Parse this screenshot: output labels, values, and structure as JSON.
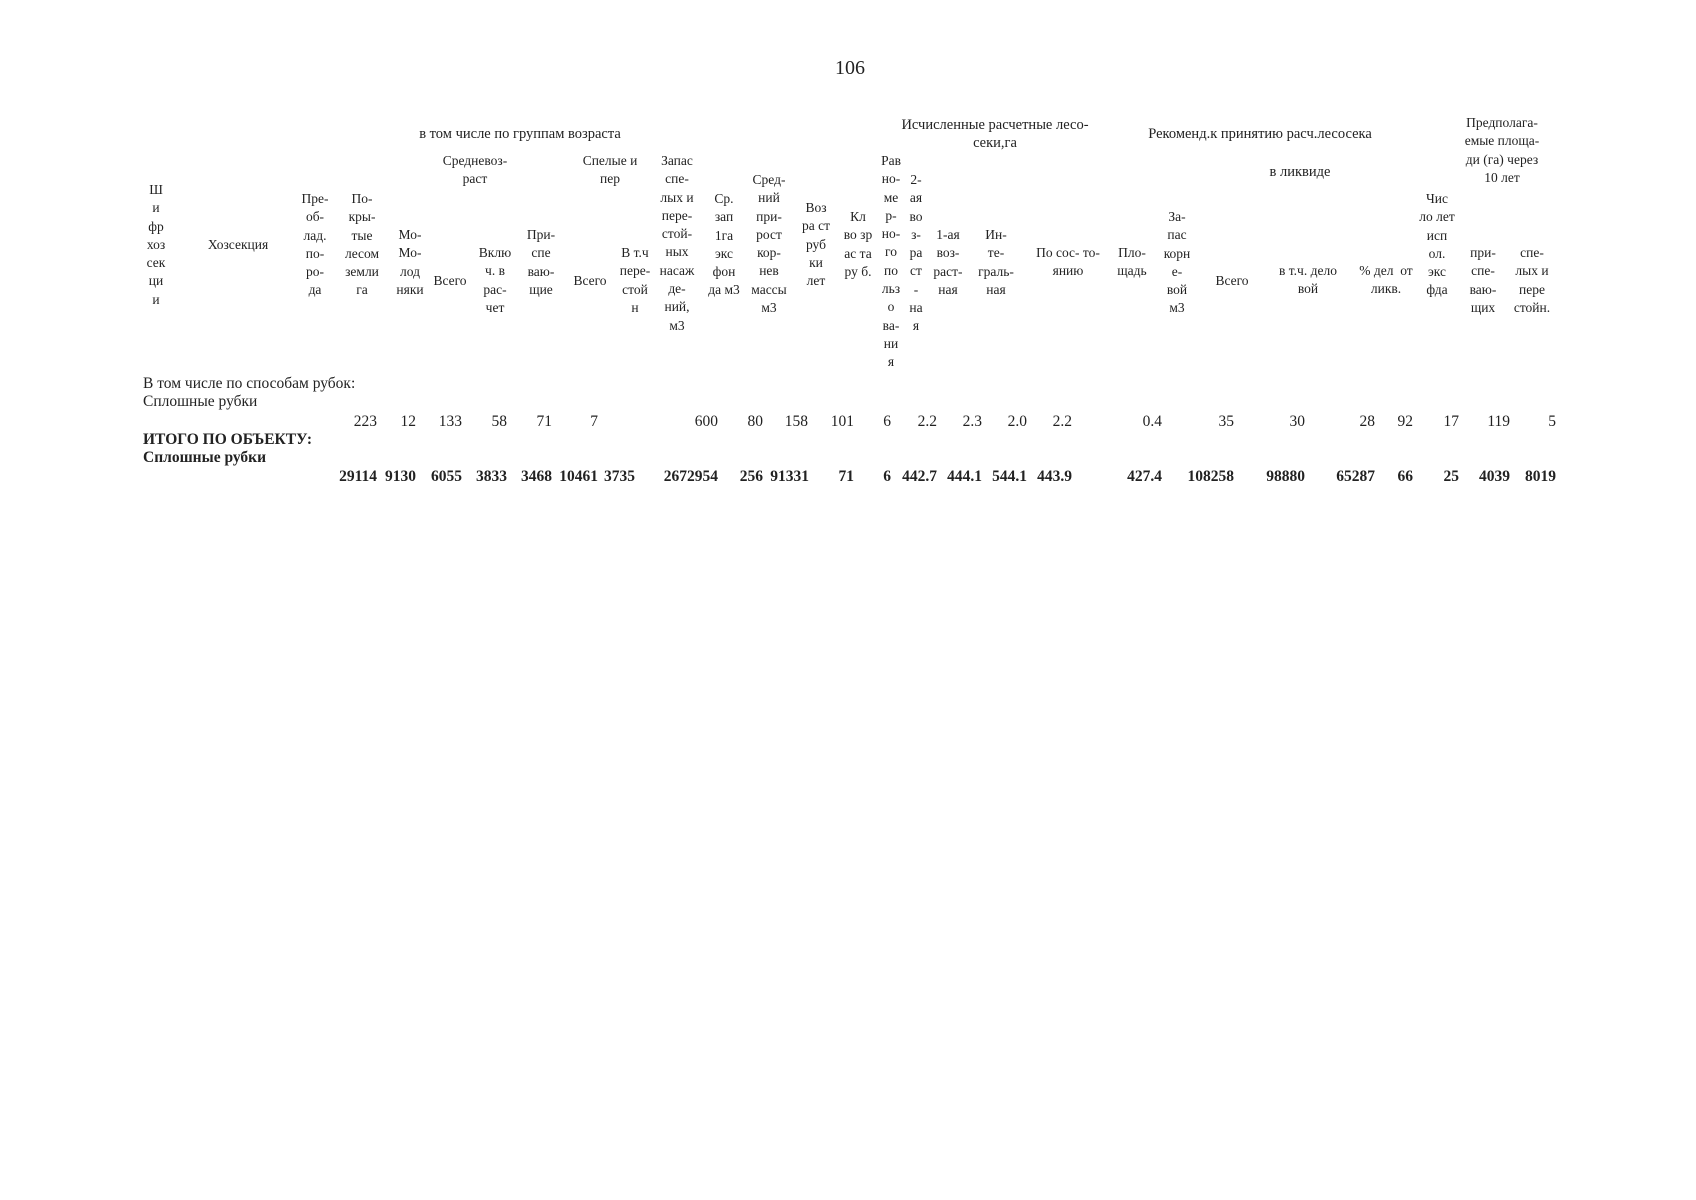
{
  "page_number": "106",
  "group_headers": {
    "age_groups": "в том числе по группам возраста",
    "calc_cutting": "Исчисленные расчетные лесо-\nсеки,га",
    "recommended": "Рекоменд.к принятию расч.лесосека",
    "liquid": "в ликвиде",
    "future_area": "Предполага-\nемые площа-\nди (га) через\n10 лет"
  },
  "sub_headers": {
    "middle_age": "Средневоз-\nраст",
    "mature": "Спелые и\nпер"
  },
  "columns": {
    "code": "Ш\nи\nфр\nхоз\nсек\nци\nи",
    "section": "Хозсекция",
    "species": "Пре-\nоб-\nлад.\nпо-\nро-\nда",
    "covered": "По-\nкры-\nтые\nлесом\nземли\nга",
    "young": "Мо-\nМо-\nлод\nняки",
    "mid_total": "Всего",
    "mid_incl": "Вклю\nч. в\nрас-\nчет",
    "premature": "При-\nспе\nваю-\nщие",
    "mat_total": "Всего",
    "mat_over": "В т.ч\nпере-\nстой\nн",
    "stock": "Запас\nспе-\nлых и\nпере-\nстой-\nных\nнасаж\nде-\nний,\nм3",
    "avg_stock": "Ср.\nзап\n1га\nэкс\nфон\nда м3",
    "avg_growth": "Сред-\nний\nпри-\nрост\nкор-\nнев\nмассы\nм3",
    "cut_age": "Воз\nра ст\nруб\nки\nлет",
    "age_class": "Кл\nво зр\nас та\nру б.",
    "even_use": "Рав\nно-\nме\nр-\nно-\nго\nпо\nльз\nо\nва-\nни\nя",
    "second_age": "2-\nая\nво\nз-\nра\nст\n-\nна\nя",
    "first_age": "1-ая\nвоз-\nраст-\nная",
    "integral": "Ин-\nте-\nграль-\nная",
    "condition": "По сос- то-\nянию",
    "area": "Пло-\nщадь",
    "root_stock": "За-\nпас\nкорн\nе-\nвой\nм3",
    "liq_total": "Всего",
    "liq_business": "в т.ч. дело\nвой",
    "pct_business": "% дел  от\nликв.",
    "years_use": "Чис\nло лет\nисп\nол.\nэкс\nфда",
    "future_premature": "при-\nспе-\nваю-\nщих",
    "future_mature": "спе-\nлых и\nпере\nстойн."
  },
  "row_labels": {
    "by_method": "В том числе по способам рубок:",
    "clear_cut": "Сплошные рубки",
    "total_title": "ИТОГО ПО ОБЪЕКТУ:",
    "total_clear_cut": "Сплошные рубки"
  },
  "row1_values": [
    "223",
    "12",
    "133",
    "58",
    "71",
    "7",
    "600",
    "80",
    "158",
    "101",
    "6",
    "2.2",
    "2.3",
    "2.0",
    "2.2",
    "0.4",
    "35",
    "30",
    "28",
    "92",
    "17",
    "119",
    "5"
  ],
  "row2_values": [
    "29114",
    "9130",
    "6055",
    "3833",
    "3468",
    "10461",
    "3735",
    "2672954",
    "256",
    "91331",
    "71",
    "6",
    "442.7",
    "444.1",
    "544.1",
    "443.9",
    "427.4",
    "108258",
    "98880",
    "65287",
    "66",
    "25",
    "4039",
    "8019"
  ]
}
